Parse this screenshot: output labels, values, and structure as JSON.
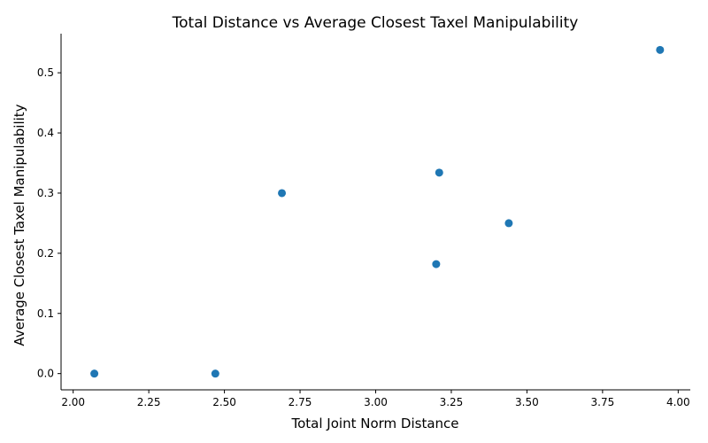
{
  "chart_data": {
    "type": "scatter",
    "title": "Total Distance vs Average Closest Taxel Manipulability",
    "xlabel": "Total Joint Norm Distance",
    "ylabel": "Average Closest Taxel Manipulability",
    "xlim": [
      1.96,
      4.04
    ],
    "ylim": [
      -0.027,
      0.565
    ],
    "xticks": [
      "2.00",
      "2.25",
      "2.50",
      "2.75",
      "3.00",
      "3.25",
      "3.50",
      "3.75",
      "4.00"
    ],
    "yticks": [
      "0.0",
      "0.1",
      "0.2",
      "0.3",
      "0.4",
      "0.5"
    ],
    "grid": false,
    "marker_color": "#1f77b4",
    "points": [
      {
        "x": 2.07,
        "y": 0.0
      },
      {
        "x": 2.47,
        "y": 0.0
      },
      {
        "x": 2.69,
        "y": 0.3
      },
      {
        "x": 3.2,
        "y": 0.182
      },
      {
        "x": 3.21,
        "y": 0.334
      },
      {
        "x": 3.44,
        "y": 0.25
      },
      {
        "x": 3.94,
        "y": 0.538
      }
    ]
  }
}
